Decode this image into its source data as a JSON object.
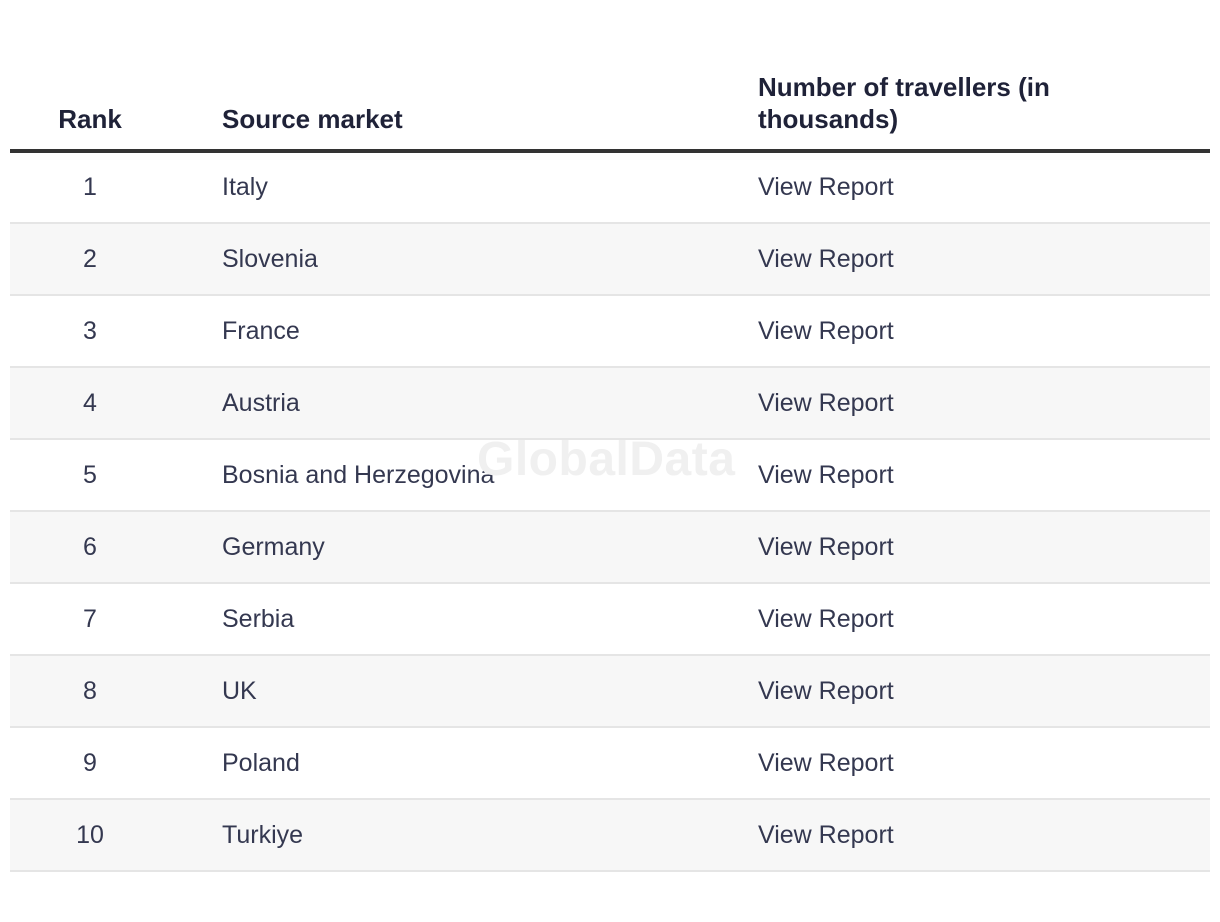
{
  "watermark": {
    "text": "GlobalData"
  },
  "table": {
    "columns": [
      {
        "id": "rank",
        "label": "Rank"
      },
      {
        "id": "source_market",
        "label": "Source market"
      },
      {
        "id": "travellers",
        "label": "Number of travellers (in thousands)"
      }
    ],
    "rows": [
      {
        "rank": "1",
        "source_market": "Italy",
        "report": "View Report"
      },
      {
        "rank": "2",
        "source_market": "Slovenia",
        "report": "View Report"
      },
      {
        "rank": "3",
        "source_market": "France",
        "report": "View Report"
      },
      {
        "rank": "4",
        "source_market": "Austria",
        "report": "View Report"
      },
      {
        "rank": "5",
        "source_market": "Bosnia and Herzegovina",
        "report": "View Report"
      },
      {
        "rank": "6",
        "source_market": "Germany",
        "report": "View Report"
      },
      {
        "rank": "7",
        "source_market": "Serbia",
        "report": "View Report"
      },
      {
        "rank": "8",
        "source_market": "UK",
        "report": "View Report"
      },
      {
        "rank": "9",
        "source_market": "Poland",
        "report": "View Report"
      },
      {
        "rank": "10",
        "source_market": "Turkiye",
        "report": "View Report"
      }
    ]
  },
  "colors": {
    "header_text": "#1f2238",
    "body_text": "#343850",
    "header_border": "#333333",
    "row_stripe": "#f7f7f7",
    "row_separator": "#e5e5e5",
    "watermark": "#f0f0f0",
    "background": "#ffffff"
  }
}
